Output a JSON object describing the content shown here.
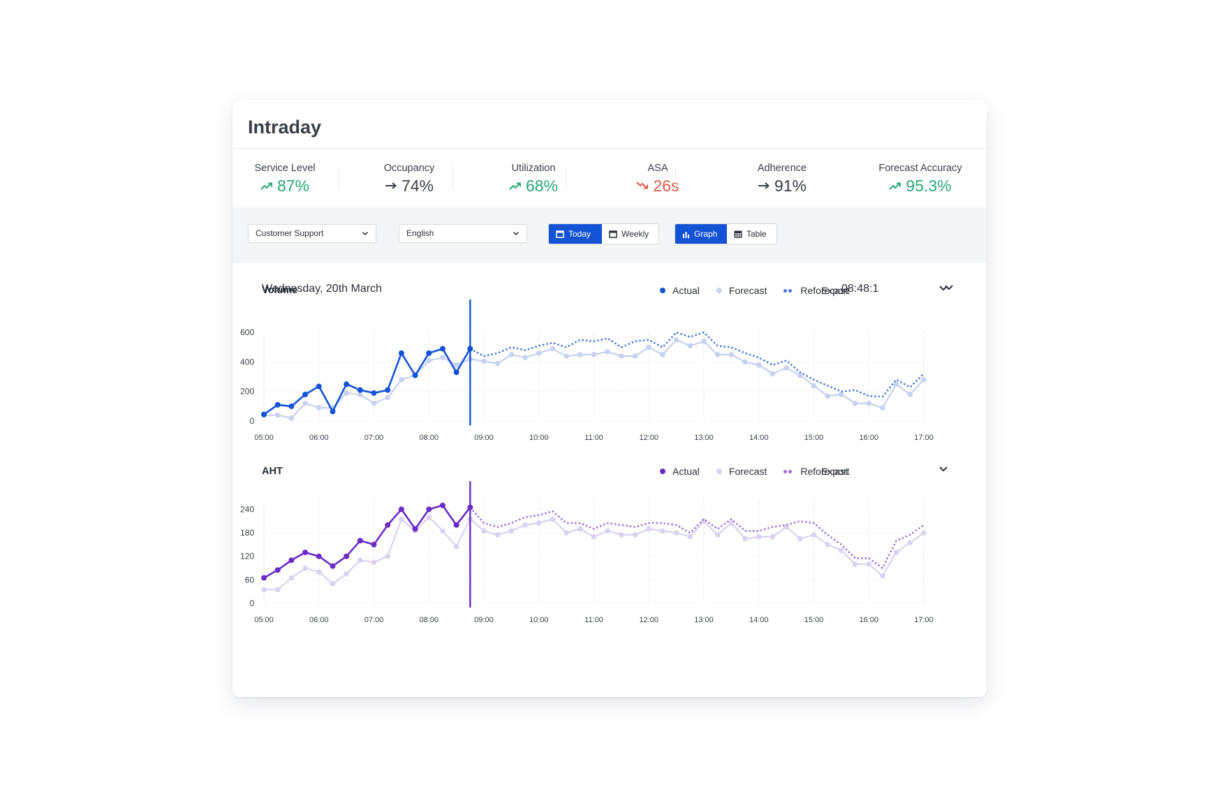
{
  "page": {
    "title": "Intraday"
  },
  "kpis": [
    {
      "label": "Service Level",
      "value": "87%",
      "trend": "up",
      "color": "#2aa876"
    },
    {
      "label": "Occupancy",
      "value": "74%",
      "trend": "flat",
      "color": "#3a3f47"
    },
    {
      "label": "Utilization",
      "value": "68%",
      "trend": "up",
      "color": "#2aa876"
    },
    {
      "label": "ASA",
      "value": "26s",
      "trend": "down",
      "color": "#e0584f"
    },
    {
      "label": "Adherence",
      "value": "91%",
      "trend": "flat",
      "color": "#3a3f47"
    },
    {
      "label": "Forecast Accuracy",
      "value": "95.3%",
      "trend": "up",
      "color": "#2aa876"
    }
  ],
  "filters": {
    "queue": {
      "selected": "Customer Support"
    },
    "language": {
      "selected": "English"
    },
    "period": [
      {
        "label": "Today",
        "active": true,
        "icon": "calendar-icon"
      },
      {
        "label": "Weekly",
        "active": false,
        "icon": "calendar-icon"
      }
    ],
    "view": [
      {
        "label": "Graph",
        "active": true,
        "icon": "bar-chart-icon"
      },
      {
        "label": "Table",
        "active": false,
        "icon": "table-icon"
      }
    ]
  },
  "date_header": {
    "date": "Wednesday, 20th March",
    "time": "08:48:1"
  },
  "legend": {
    "actual": "Actual",
    "forecast": "Forecast",
    "reforecast": "Reforecast",
    "export": "Export"
  },
  "colors": {
    "volume_actual": "#1453d6",
    "volume_forecast": "#c6d2ef",
    "volume_reforecast": "#3f78dd",
    "aht_actual": "#6a2bc6",
    "aht_forecast": "#dad2ef",
    "aht_reforecast": "#9670dd"
  },
  "chart_data": [
    {
      "type": "line",
      "title": "Volume",
      "xlabel": "",
      "ylabel": "",
      "x_ticks": [
        "05:00",
        "06:00",
        "07:00",
        "08:00",
        "09:00",
        "10:00",
        "11:00",
        "12:00",
        "13:00",
        "14:00",
        "15:00",
        "16:00",
        "17:00"
      ],
      "y_ticks": [
        0,
        200,
        400,
        600
      ],
      "ylim": [
        0,
        700
      ],
      "xlim": [
        "05:00",
        "17:00"
      ],
      "current_time": "08:45",
      "grid": true,
      "legend_position": "top-right",
      "series": [
        {
          "name": "Actual",
          "style": "solid-markers",
          "x": [
            "05:00",
            "05:15",
            "05:30",
            "05:45",
            "06:00",
            "06:15",
            "06:30",
            "06:45",
            "07:00",
            "07:15",
            "07:30",
            "07:45",
            "08:00",
            "08:15",
            "08:30",
            "08:45"
          ],
          "values": [
            45,
            110,
            100,
            180,
            235,
            65,
            250,
            210,
            190,
            210,
            460,
            310,
            460,
            490,
            330,
            490
          ]
        },
        {
          "name": "Forecast",
          "style": "light-markers",
          "x": [
            "05:00",
            "05:15",
            "05:30",
            "05:45",
            "06:00",
            "06:15",
            "06:30",
            "06:45",
            "07:00",
            "07:15",
            "07:30",
            "07:45",
            "08:00",
            "08:15",
            "08:30",
            "08:45",
            "09:00",
            "09:15",
            "09:30",
            "09:45",
            "10:00",
            "10:15",
            "10:30",
            "10:45",
            "11:00",
            "11:15",
            "11:30",
            "11:45",
            "12:00",
            "12:15",
            "12:30",
            "12:45",
            "13:00",
            "13:15",
            "13:30",
            "13:45",
            "14:00",
            "14:15",
            "14:30",
            "14:45",
            "15:00",
            "15:15",
            "15:30",
            "15:45",
            "16:00",
            "16:15",
            "16:30",
            "16:45",
            "17:00"
          ],
          "values": [
            40,
            40,
            20,
            120,
            90,
            90,
            190,
            180,
            120,
            160,
            280,
            310,
            410,
            430,
            380,
            420,
            405,
            390,
            450,
            430,
            460,
            490,
            440,
            450,
            450,
            470,
            440,
            440,
            500,
            450,
            550,
            510,
            540,
            450,
            450,
            400,
            380,
            320,
            360,
            310,
            240,
            170,
            180,
            120,
            120,
            90,
            250,
            180,
            280
          ]
        },
        {
          "name": "Reforecast",
          "style": "dotted",
          "x": [
            "08:45",
            "09:00",
            "09:15",
            "09:30",
            "09:45",
            "10:00",
            "10:15",
            "10:30",
            "10:45",
            "11:00",
            "11:15",
            "11:30",
            "11:45",
            "12:00",
            "12:15",
            "12:30",
            "12:45",
            "13:00",
            "13:15",
            "13:30",
            "13:45",
            "14:00",
            "14:15",
            "14:30",
            "14:45",
            "15:00",
            "15:30",
            "15:45",
            "16:00",
            "16:15",
            "16:30",
            "16:45",
            "17:00"
          ],
          "values": [
            490,
            440,
            460,
            500,
            480,
            510,
            530,
            500,
            550,
            540,
            560,
            500,
            540,
            550,
            500,
            600,
            570,
            600,
            510,
            500,
            460,
            430,
            380,
            410,
            330,
            280,
            200,
            210,
            170,
            165,
            280,
            230,
            320
          ]
        }
      ]
    },
    {
      "type": "line",
      "title": "AHT",
      "xlabel": "",
      "ylabel": "",
      "x_ticks": [
        "05:00",
        "06:00",
        "07:00",
        "08:00",
        "09:00",
        "10:00",
        "11:00",
        "12:00",
        "13:00",
        "14:00",
        "15:00",
        "16:00",
        "17:00"
      ],
      "y_ticks": [
        0,
        60,
        120,
        180,
        240
      ],
      "ylim": [
        0,
        280
      ],
      "xlim": [
        "05:00",
        "17:00"
      ],
      "current_time": "08:45",
      "grid": true,
      "legend_position": "top-right",
      "series": [
        {
          "name": "Actual",
          "style": "solid-markers",
          "x": [
            "05:00",
            "05:15",
            "05:30",
            "05:45",
            "06:00",
            "06:15",
            "06:30",
            "06:45",
            "07:00",
            "07:15",
            "07:30",
            "07:45",
            "08:00",
            "08:15",
            "08:30",
            "08:45"
          ],
          "values": [
            65,
            85,
            110,
            130,
            120,
            95,
            120,
            160,
            150,
            200,
            240,
            190,
            240,
            250,
            200,
            245
          ]
        },
        {
          "name": "Forecast",
          "style": "light-markers",
          "x": [
            "05:00",
            "05:15",
            "05:30",
            "05:45",
            "06:00",
            "06:15",
            "06:30",
            "06:45",
            "07:00",
            "07:15",
            "07:30",
            "07:45",
            "08:00",
            "08:15",
            "08:30",
            "08:45",
            "09:00",
            "09:15",
            "09:30",
            "09:45",
            "10:00",
            "10:15",
            "10:30",
            "10:45",
            "11:00",
            "11:15",
            "11:30",
            "11:45",
            "12:00",
            "12:15",
            "12:30",
            "12:45",
            "13:00",
            "13:15",
            "13:30",
            "13:45",
            "14:00",
            "14:15",
            "14:30",
            "14:45",
            "15:00",
            "15:15",
            "15:30",
            "15:45",
            "16:00",
            "16:15",
            "16:30",
            "16:45",
            "17:00"
          ],
          "values": [
            35,
            35,
            65,
            90,
            80,
            50,
            75,
            110,
            105,
            120,
            215,
            185,
            220,
            185,
            145,
            215,
            185,
            175,
            185,
            200,
            205,
            215,
            180,
            190,
            170,
            185,
            175,
            175,
            190,
            185,
            180,
            170,
            210,
            175,
            205,
            165,
            170,
            170,
            195,
            165,
            175,
            150,
            135,
            100,
            100,
            70,
            130,
            155,
            180
          ]
        },
        {
          "name": "Reforecast",
          "style": "dotted",
          "x": [
            "08:45",
            "09:00",
            "09:15",
            "09:30",
            "09:45",
            "10:00",
            "10:15",
            "10:30",
            "10:45",
            "11:00",
            "11:15",
            "11:30",
            "11:45",
            "12:00",
            "12:15",
            "12:30",
            "12:45",
            "13:00",
            "13:15",
            "13:30",
            "13:45",
            "14:00",
            "14:15",
            "14:30",
            "14:45",
            "15:00",
            "15:15",
            "15:30",
            "15:45",
            "16:00",
            "16:15",
            "16:30",
            "16:45",
            "17:00"
          ],
          "values": [
            245,
            205,
            195,
            205,
            220,
            225,
            235,
            205,
            205,
            190,
            205,
            200,
            195,
            205,
            205,
            200,
            180,
            215,
            190,
            215,
            185,
            185,
            195,
            200,
            210,
            205,
            175,
            150,
            115,
            115,
            90,
            160,
            175,
            200
          ]
        }
      ]
    }
  ]
}
